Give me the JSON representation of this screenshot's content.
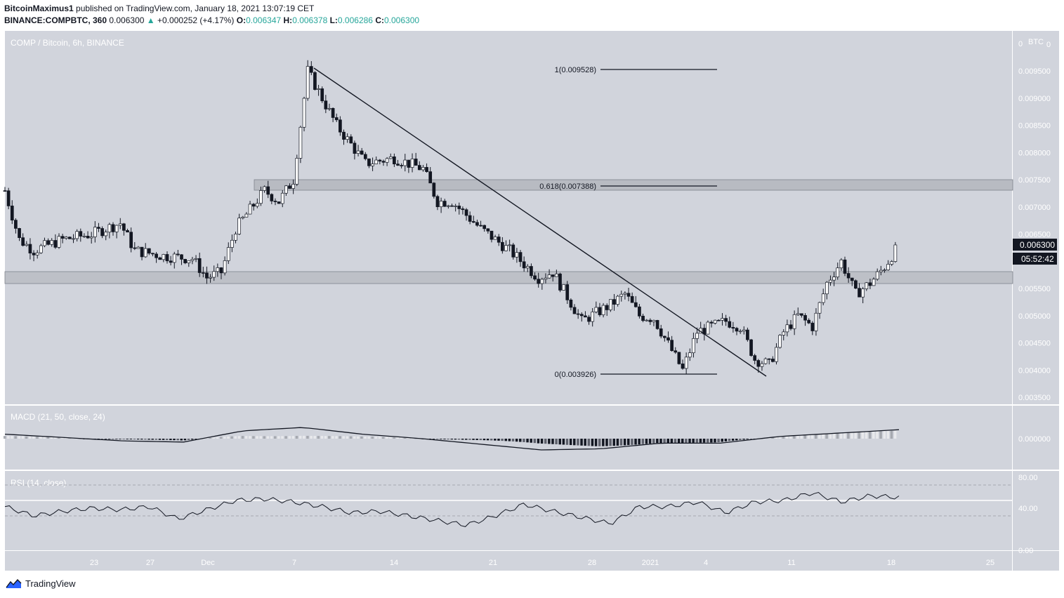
{
  "header": {
    "author": "BitcoinMaximus1",
    "published_text": "published on TradingView.com, January 18, 2021 13:07:19 CET",
    "symbol": "BINANCE:COMPBTC, 360",
    "last": "0.006300",
    "change_arrow": "▲",
    "change": "+0.000252 (+4.17%)",
    "o_label": "O:",
    "o_value": "0.006347",
    "h_label": "H:",
    "h_value": "0.006378",
    "l_label": "L:",
    "l_value": "0.006286",
    "c_label": "C:",
    "c_value": "0.006300"
  },
  "main_pane": {
    "title": "COMP / Bitcoin, 6h, BINANCE",
    "currency": "BTC",
    "price_badge": "0.006300",
    "countdown_badge": "05:52:42",
    "fib_labels": [
      "1(0.009528)",
      "0.618(0.007388)",
      "0(0.003926)"
    ]
  },
  "macd_pane": {
    "title": "MACD (21, 50, close, 24)",
    "tick": "0.000000"
  },
  "rsi_pane": {
    "title": "RSI (14, close)",
    "ticks": [
      "80.00",
      "40.00",
      "0.00"
    ]
  },
  "footer": {
    "brand": "TradingView"
  },
  "chart_data": {
    "type": "candlestick",
    "title": "COMP / Bitcoin, 6h, BINANCE",
    "ylabel": "BTC",
    "ylim": [
      0.0033,
      0.01
    ],
    "y_ticks": [
      "0",
      "0.009500",
      "0.009000",
      "0.008500",
      "0.008000",
      "0.007500",
      "0.007000",
      "0.006500",
      "0.005500",
      "0.005000",
      "0.004500",
      "0.004000",
      "0.003500"
    ],
    "x_ticks": [
      "23",
      "27",
      "Dec",
      "7",
      "14",
      "21",
      "28",
      "2021",
      "4",
      "11",
      "18",
      "25"
    ],
    "price_path": [
      {
        "x": "Nov 17",
        "y": 0.0073
      },
      {
        "x": "Nov 18",
        "y": 0.0064
      },
      {
        "x": "Nov 19",
        "y": 0.0062
      },
      {
        "x": "Nov 21",
        "y": 0.0064
      },
      {
        "x": "Nov 23",
        "y": 0.0065
      },
      {
        "x": "Nov 25",
        "y": 0.0067
      },
      {
        "x": "Nov 26",
        "y": 0.0062
      },
      {
        "x": "Nov 28",
        "y": 0.0061
      },
      {
        "x": "Nov 30",
        "y": 0.00605
      },
      {
        "x": "Dec 1",
        "y": 0.0057
      },
      {
        "x": "Dec 2",
        "y": 0.0058
      },
      {
        "x": "Dec 3",
        "y": 0.0066
      },
      {
        "x": "Dec 5",
        "y": 0.0073
      },
      {
        "x": "Dec 6",
        "y": 0.0071
      },
      {
        "x": "Dec 7",
        "y": 0.0075
      },
      {
        "x": "Dec 8",
        "y": 0.0095
      },
      {
        "x": "Dec 10",
        "y": 0.0085
      },
      {
        "x": "Dec 12",
        "y": 0.0078
      },
      {
        "x": "Dec 14",
        "y": 0.0079
      },
      {
        "x": "Dec 16",
        "y": 0.0077
      },
      {
        "x": "Dec 17",
        "y": 0.0071
      },
      {
        "x": "Dec 18",
        "y": 0.0071
      },
      {
        "x": "Dec 20",
        "y": 0.0066
      },
      {
        "x": "Dec 22",
        "y": 0.0062
      },
      {
        "x": "Dec 24",
        "y": 0.0057
      },
      {
        "x": "Dec 25",
        "y": 0.0058
      },
      {
        "x": "Dec 27",
        "y": 0.0049
      },
      {
        "x": "Dec 29",
        "y": 0.0052
      },
      {
        "x": "Dec 30",
        "y": 0.0054
      },
      {
        "x": "Dec 31",
        "y": 0.005
      },
      {
        "x": "Jan 1",
        "y": 0.00495
      },
      {
        "x": "Jan 3",
        "y": 0.004
      },
      {
        "x": "Jan 4",
        "y": 0.0047
      },
      {
        "x": "Jan 6",
        "y": 0.0049
      },
      {
        "x": "Jan 7",
        "y": 0.0048
      },
      {
        "x": "Jan 8",
        "y": 0.0042
      },
      {
        "x": "Jan 9",
        "y": 0.0041
      },
      {
        "x": "Jan 10",
        "y": 0.0047
      },
      {
        "x": "Jan 11",
        "y": 0.005
      },
      {
        "x": "Jan 12",
        "y": 0.0048
      },
      {
        "x": "Jan 13",
        "y": 0.0056
      },
      {
        "x": "Jan 14",
        "y": 0.006
      },
      {
        "x": "Jan 15",
        "y": 0.0054
      },
      {
        "x": "Jan 16",
        "y": 0.0056
      },
      {
        "x": "Jan 17",
        "y": 0.0059
      },
      {
        "x": "Jan 18",
        "y": 0.0063
      }
    ],
    "last_price": 0.0063,
    "fib_levels": [
      {
        "label": "1(0.009528)",
        "y": 0.009528
      },
      {
        "label": "0.618(0.007388)",
        "y": 0.007388
      },
      {
        "label": "0(0.003926)",
        "y": 0.003926
      }
    ],
    "resistance_zone": [
      0.0073,
      0.0075
    ],
    "support_zone": [
      0.0056,
      0.00582
    ],
    "trendline": [
      {
        "x": "Dec 8",
        "y": 0.00955
      },
      {
        "x": "Jan 10",
        "y": 0.0039
      }
    ],
    "macd": {
      "params": "21, 50, close, 24",
      "signal_path": [
        0.2,
        0.05,
        -0.1,
        -0.15,
        0.35,
        0.5,
        0.2,
        0.0,
        -0.25,
        -0.5,
        -0.45,
        -0.2,
        -0.2,
        0.1,
        0.25,
        0.4
      ]
    },
    "rsi": {
      "params": "14, close",
      "levels": [
        80,
        40
      ],
      "mid_line": 50,
      "values": [
        52,
        40,
        46,
        50,
        48,
        52,
        36,
        48,
        60,
        62,
        58,
        52,
        44,
        46,
        40,
        34,
        28,
        40,
        55,
        46,
        38,
        30,
        52,
        52,
        58,
        44,
        58,
        60,
        70,
        58,
        66,
        64
      ]
    }
  }
}
